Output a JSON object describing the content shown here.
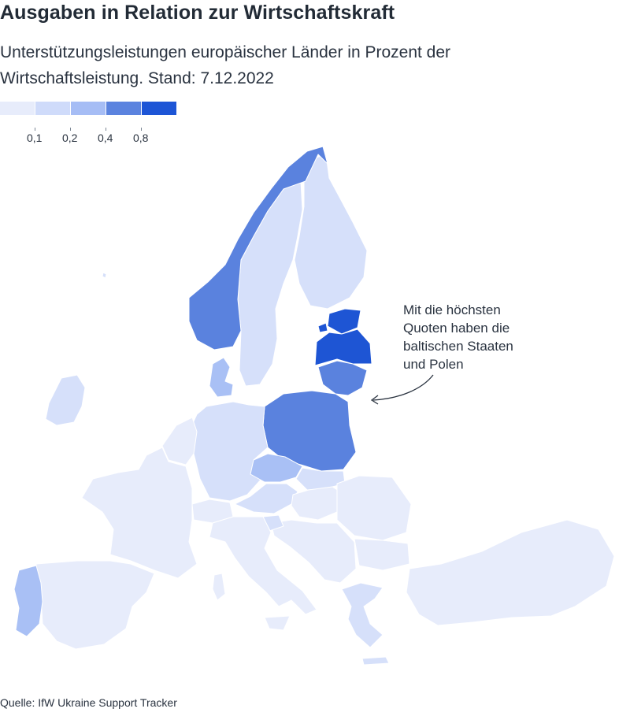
{
  "title": "Ausgaben in Relation zur Wirtschaftskraft",
  "subtitle": "Unterstützungsleistungen europäischer Länder in Prozent der Wirtschaftsleistung. Stand: 7.12.2022",
  "legend": {
    "colors": [
      "#e7ecfb",
      "#cfdbfa",
      "#a6bdf5",
      "#5b83df",
      "#1d55d6"
    ],
    "ticks": [
      "0,1",
      "0,2",
      "0,4",
      "0,8"
    ]
  },
  "annotation": {
    "lines": [
      "Mit die höchsten",
      "Quoten haben die",
      "baltischen Staaten",
      "und Polen"
    ]
  },
  "source": "Quelle: IfW Ukraine Support Tracker",
  "map": {
    "classes": {
      "c1": "#e7ecfb",
      "c2": "#d6e0fa",
      "c3": "#a9c0f5",
      "c4": "#5a82de",
      "c5": "#1e55d4"
    }
  }
}
